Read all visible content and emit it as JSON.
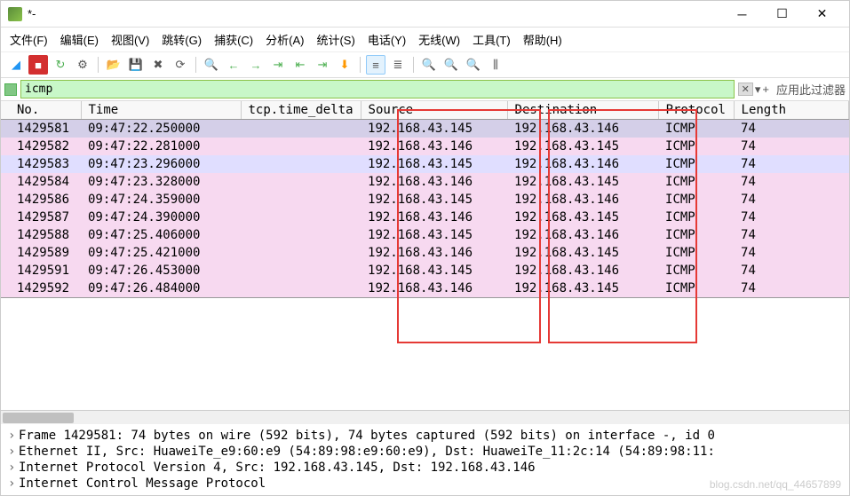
{
  "window": {
    "title": "*-"
  },
  "menu": {
    "file": "文件(F)",
    "edit": "编辑(E)",
    "view": "视图(V)",
    "goto": "跳转(G)",
    "capture": "捕获(C)",
    "analyze": "分析(A)",
    "stats": "统计(S)",
    "telephony": "电话(Y)",
    "wireless": "无线(W)",
    "tools": "工具(T)",
    "help": "帮助(H)"
  },
  "filter": {
    "value": "icmp",
    "apply_label": "应用此过滤器"
  },
  "columns": {
    "no": "No.",
    "time": "Time",
    "delta": "tcp.time_delta",
    "src": "Source",
    "dst": "Destination",
    "proto": "Protocol",
    "len": "Length"
  },
  "packets": [
    {
      "no": "1429581",
      "time": "09:47:22.250000",
      "src": "192.168.43.145",
      "dst": "192.168.43.146",
      "proto": "ICMP",
      "len": "74",
      "cls": "sel"
    },
    {
      "no": "1429582",
      "time": "09:47:22.281000",
      "src": "192.168.43.146",
      "dst": "192.168.43.145",
      "proto": "ICMP",
      "len": "74",
      "cls": "pink"
    },
    {
      "no": "1429583",
      "time": "09:47:23.296000",
      "src": "192.168.43.145",
      "dst": "192.168.43.146",
      "proto": "ICMP",
      "len": "74",
      "cls": "lav"
    },
    {
      "no": "1429584",
      "time": "09:47:23.328000",
      "src": "192.168.43.146",
      "dst": "192.168.43.145",
      "proto": "ICMP",
      "len": "74",
      "cls": "pink"
    },
    {
      "no": "1429586",
      "time": "09:47:24.359000",
      "src": "192.168.43.145",
      "dst": "192.168.43.146",
      "proto": "ICMP",
      "len": "74",
      "cls": "pink"
    },
    {
      "no": "1429587",
      "time": "09:47:24.390000",
      "src": "192.168.43.146",
      "dst": "192.168.43.145",
      "proto": "ICMP",
      "len": "74",
      "cls": "pink"
    },
    {
      "no": "1429588",
      "time": "09:47:25.406000",
      "src": "192.168.43.145",
      "dst": "192.168.43.146",
      "proto": "ICMP",
      "len": "74",
      "cls": "pink"
    },
    {
      "no": "1429589",
      "time": "09:47:25.421000",
      "src": "192.168.43.146",
      "dst": "192.168.43.145",
      "proto": "ICMP",
      "len": "74",
      "cls": "pink"
    },
    {
      "no": "1429591",
      "time": "09:47:26.453000",
      "src": "192.168.43.145",
      "dst": "192.168.43.146",
      "proto": "ICMP",
      "len": "74",
      "cls": "pink"
    },
    {
      "no": "1429592",
      "time": "09:47:26.484000",
      "src": "192.168.43.146",
      "dst": "192.168.43.145",
      "proto": "ICMP",
      "len": "74",
      "cls": "pink"
    }
  ],
  "details": {
    "l1": "Frame 1429581: 74 bytes on wire (592 bits), 74 bytes captured (592 bits) on interface -, id 0",
    "l2": "Ethernet II, Src: HuaweiTe_e9:60:e9 (54:89:98:e9:60:e9), Dst: HuaweiTe_11:2c:14 (54:89:98:11:",
    "l3": "Internet Protocol Version 4, Src: 192.168.43.145, Dst: 192.168.43.146",
    "l4": "Internet Control Message Protocol"
  },
  "watermark": "blog.csdn.net/qq_44657899",
  "colors": {
    "filter_bg": "#c8f7c8",
    "pink": "#f7d9f0",
    "lav": "#e0deff",
    "sel": "#d4cfe8",
    "redbox": "#e53935"
  }
}
